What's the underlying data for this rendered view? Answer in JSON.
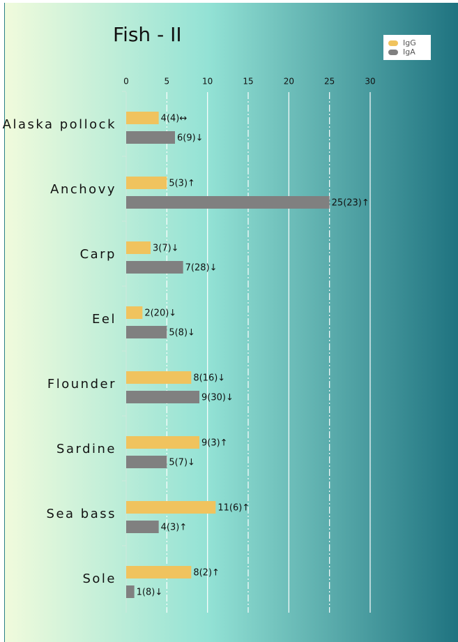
{
  "chart_data": {
    "type": "hbar",
    "title": "Fish - II",
    "categories": [
      "Alaska pollock",
      "Anchovy",
      "Carp",
      "Eel",
      "Flounder",
      "Sardine",
      "Sea bass",
      "Sole"
    ],
    "series": [
      {
        "name": "IgG",
        "color": "#f0c35e",
        "values": [
          4,
          5,
          3,
          2,
          8,
          9,
          11,
          8
        ],
        "value_labels": [
          "4(4)↔",
          "5(3)↑",
          "3(7)↓",
          "2(20)↓",
          "8(16)↓",
          "9(3)↑",
          "11(6)↑",
          "8(2)↑"
        ]
      },
      {
        "name": "IgA",
        "color": "#808080",
        "values": [
          6,
          25,
          7,
          5,
          9,
          5,
          4,
          1
        ],
        "value_labels": [
          "6(9)↓",
          "25(23)↑",
          "7(28)↓",
          "5(8)↓",
          "9(30)↓",
          "5(7)↓",
          "4(3)↑",
          "1(8)↓"
        ]
      }
    ],
    "xlim": [
      0,
      30
    ],
    "xticks": [
      0,
      5,
      10,
      15,
      20,
      25,
      30
    ],
    "grid": true,
    "legend": "top-right"
  }
}
